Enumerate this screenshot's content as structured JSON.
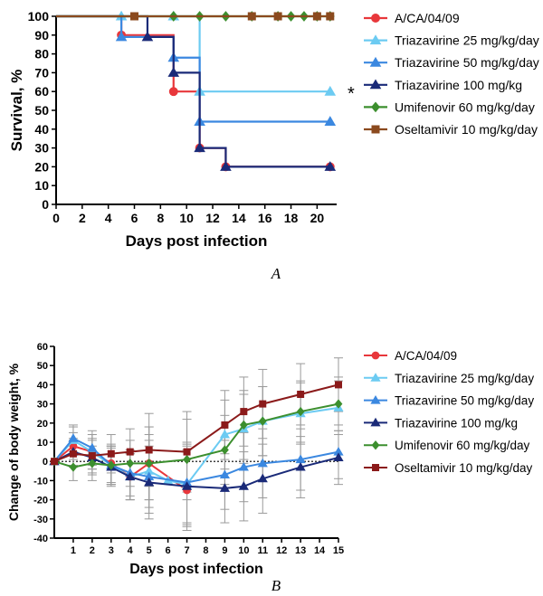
{
  "chart_data": [
    {
      "type": "line",
      "panel_label": "A",
      "xlabel": "Days post infection",
      "ylabel": "Survival, %",
      "xlim": [
        0,
        21.5
      ],
      "ylim": [
        0,
        100
      ],
      "x_ticks": [
        "0",
        "2",
        "4",
        "6",
        "8",
        "10",
        "12",
        "14",
        "16",
        "18",
        "20"
      ],
      "y_ticks": [
        "0",
        "10",
        "20",
        "30",
        "40",
        "50",
        "60",
        "70",
        "80",
        "90",
        "100"
      ],
      "step": true,
      "legend_position": "right",
      "annotation": "*",
      "series": [
        {
          "name": "A/CA/04/09",
          "color": "#e8373b",
          "marker": "circle",
          "steps": [
            [
              0,
              100
            ],
            [
              5,
              100
            ],
            [
              5,
              90
            ],
            [
              9,
              90
            ],
            [
              9,
              60
            ],
            [
              11,
              60
            ],
            [
              11,
              30
            ],
            [
              13,
              30
            ],
            [
              13,
              20
            ],
            [
              21,
              20
            ]
          ],
          "markers": [
            [
              5,
              90
            ],
            [
              9,
              60
            ],
            [
              11,
              30
            ],
            [
              13,
              20
            ],
            [
              21,
              20
            ]
          ]
        },
        {
          "name": "Triazavirine 25 mg/kg/day",
          "color": "#6ccbf2",
          "marker": "triangle",
          "steps": [
            [
              0,
              100
            ],
            [
              11,
              100
            ],
            [
              11,
              60
            ],
            [
              21,
              60
            ]
          ],
          "markers": [
            [
              5,
              100
            ],
            [
              9,
              100
            ],
            [
              11,
              60
            ],
            [
              21,
              60
            ]
          ]
        },
        {
          "name": "Triazavirine 50 mg/kg/day",
          "color": "#3b88e0",
          "marker": "triangle",
          "steps": [
            [
              0,
              100
            ],
            [
              5,
              100
            ],
            [
              5,
              89
            ],
            [
              9,
              89
            ],
            [
              9,
              78
            ],
            [
              11,
              78
            ],
            [
              11,
              44
            ],
            [
              21,
              44
            ]
          ],
          "markers": [
            [
              5,
              89
            ],
            [
              9,
              78
            ],
            [
              11,
              44
            ],
            [
              21,
              44
            ]
          ]
        },
        {
          "name": "Triazavirine 100 mg/kg",
          "color": "#1a2a78",
          "marker": "triangle",
          "steps": [
            [
              0,
              100
            ],
            [
              7,
              100
            ],
            [
              7,
              89
            ],
            [
              9,
              89
            ],
            [
              9,
              70
            ],
            [
              11,
              70
            ],
            [
              11,
              30
            ],
            [
              13,
              30
            ],
            [
              13,
              20
            ],
            [
              21,
              20
            ]
          ],
          "markers": [
            [
              7,
              89
            ],
            [
              9,
              70
            ],
            [
              11,
              30
            ],
            [
              13,
              20
            ],
            [
              21,
              20
            ]
          ]
        },
        {
          "name": "Umifenovir 60 mg/kg/day",
          "color": "#3c8f2e",
          "marker": "diamond",
          "steps": [
            [
              0,
              100
            ],
            [
              21,
              100
            ]
          ],
          "markers": [
            [
              9,
              100
            ],
            [
              11,
              100
            ],
            [
              13,
              100
            ],
            [
              15,
              100
            ],
            [
              17,
              100
            ],
            [
              18,
              100
            ],
            [
              19,
              100
            ],
            [
              20,
              100
            ],
            [
              21,
              100
            ]
          ]
        },
        {
          "name": "Oseltamivir 10 mg/kg/day",
          "color": "#8b4a1e",
          "marker": "square",
          "steps": [
            [
              0,
              100
            ],
            [
              21,
              100
            ]
          ],
          "markers": [
            [
              6,
              100
            ],
            [
              15,
              100
            ],
            [
              17,
              100
            ],
            [
              20,
              100
            ],
            [
              21,
              100
            ]
          ]
        }
      ]
    },
    {
      "type": "line",
      "panel_label": "B",
      "xlabel": "Days post infection",
      "ylabel": "Change of body weight, %",
      "xlim": [
        0,
        15
      ],
      "ylim": [
        -40,
        60
      ],
      "x_ticks": [
        "1",
        "2",
        "3",
        "4",
        "5",
        "6",
        "7",
        "8",
        "9",
        "10",
        "11",
        "12",
        "13",
        "14",
        "15"
      ],
      "y_ticks": [
        "-40",
        "-30",
        "-20",
        "-10",
        "0",
        "10",
        "20",
        "30",
        "40",
        "50",
        "60"
      ],
      "reference_line": 0,
      "legend_position": "right",
      "series": [
        {
          "name": "A/CA/04/09",
          "color": "#e8373b",
          "marker": "circle",
          "x": [
            0,
            1,
            2,
            3,
            4,
            5,
            7
          ],
          "y": [
            0,
            8,
            5,
            -1,
            -8,
            -1,
            -15
          ]
        },
        {
          "name": "Triazavirine 25 mg/kg/day",
          "color": "#6ccbf2",
          "marker": "triangle",
          "x": [
            0,
            1,
            2,
            3,
            4,
            5,
            6,
            7,
            9,
            10,
            11,
            13,
            15
          ],
          "y": [
            0,
            11,
            5,
            -2,
            -8,
            -5,
            -10,
            -12,
            14,
            17,
            21,
            25,
            28
          ]
        },
        {
          "name": "Triazavirine 50 mg/kg/day",
          "color": "#3b88e0",
          "marker": "triangle",
          "x": [
            0,
            1,
            2,
            3,
            4,
            5,
            7,
            9,
            10,
            11,
            13,
            15
          ],
          "y": [
            0,
            12,
            7,
            -2,
            -6,
            -8,
            -11,
            -7,
            -3,
            -1,
            1,
            5
          ]
        },
        {
          "name": "Triazavirine 100 mg/kg",
          "color": "#1a2a78",
          "marker": "triangle",
          "x": [
            0,
            1,
            2,
            3,
            4,
            5,
            7,
            9,
            10,
            11,
            13,
            15
          ],
          "y": [
            0,
            5,
            2,
            -3,
            -8,
            -11,
            -13,
            -14,
            -13,
            -9,
            -3,
            2
          ]
        },
        {
          "name": "Umifenovir 60 mg/kg/day",
          "color": "#3c8f2e",
          "marker": "diamond",
          "x": [
            0,
            1,
            2,
            3,
            4,
            5,
            7,
            9,
            10,
            11,
            13,
            15
          ],
          "y": [
            0,
            -3,
            -1,
            -2,
            -1,
            -1,
            1,
            6,
            19,
            21,
            26,
            30
          ]
        },
        {
          "name": "Oseltamivir 10 mg/kg/day",
          "color": "#8b1a1a",
          "marker": "square",
          "x": [
            0,
            1,
            2,
            3,
            4,
            5,
            7,
            9,
            10,
            11,
            13,
            15
          ],
          "y": [
            0,
            4,
            3,
            4,
            5,
            6,
            5,
            19,
            26,
            30,
            35,
            40
          ]
        }
      ],
      "error_bars": {
        "x": [
          1,
          2,
          3,
          4,
          5,
          7,
          9,
          10,
          11,
          13,
          15
        ],
        "sd": [
          7,
          9,
          10,
          12,
          19,
          21,
          18,
          18,
          18,
          16,
          14
        ]
      }
    }
  ]
}
